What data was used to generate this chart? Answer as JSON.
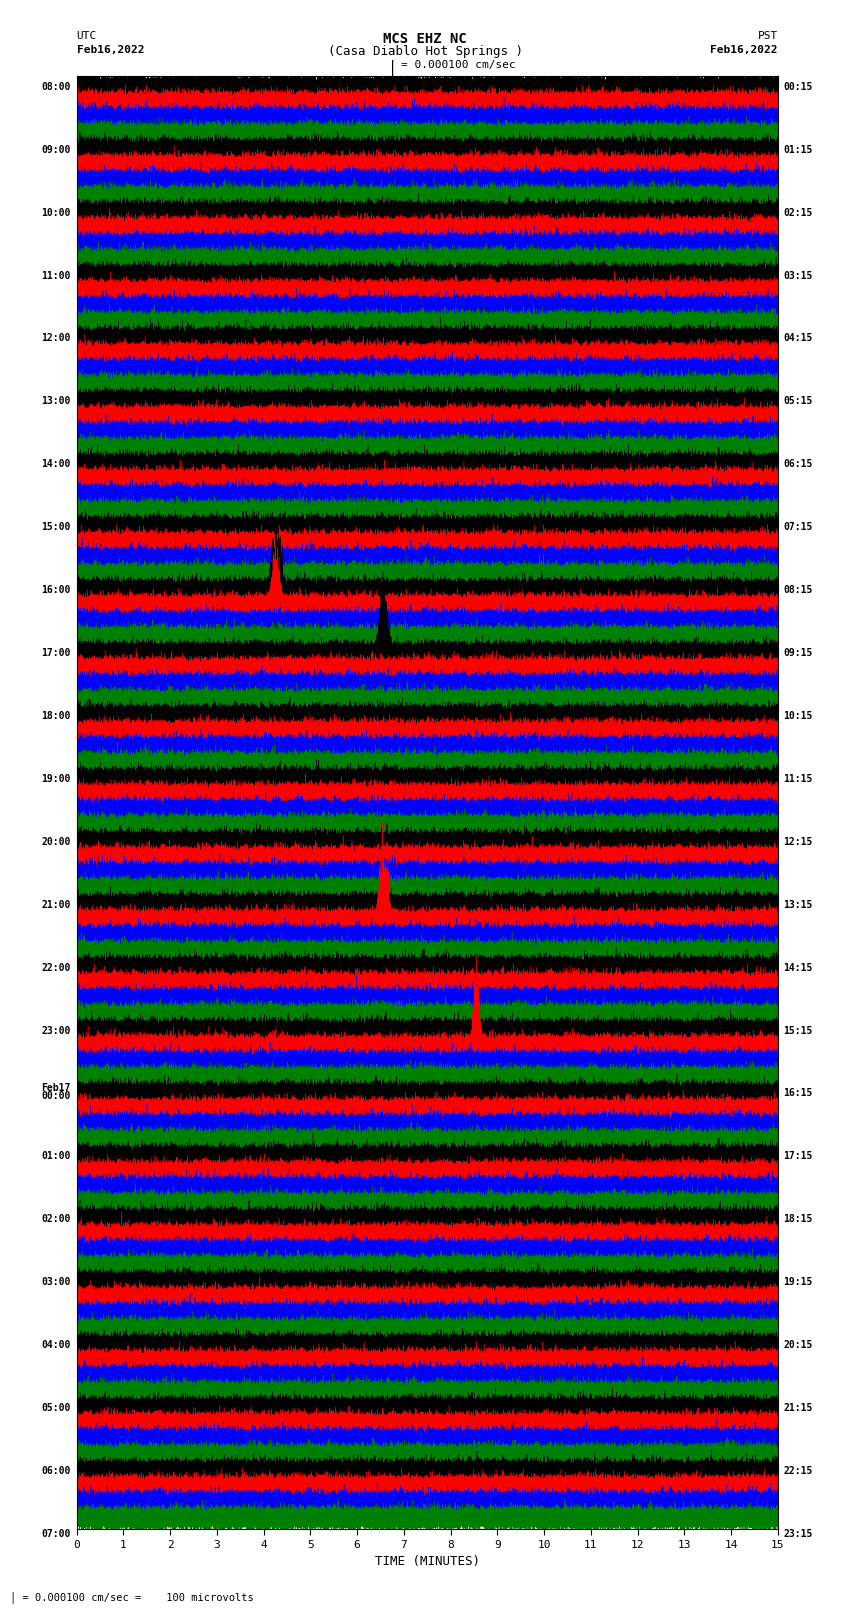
{
  "title_line1": "MCS EHZ NC",
  "title_line2": "(Casa Diablo Hot Springs )",
  "scale_label": "= 0.000100 cm/sec",
  "left_label_top": "UTC",
  "left_label_date": "Feb16,2022",
  "right_label_top": "PST",
  "right_label_date": "Feb16,2022",
  "bottom_label": "TIME (MINUTES)",
  "bottom_note": "= 0.000100 cm/sec =    100 microvolts",
  "xlabel_ticks": [
    0,
    1,
    2,
    3,
    4,
    5,
    6,
    7,
    8,
    9,
    10,
    11,
    12,
    13,
    14,
    15
  ],
  "utc_labels": [
    "08:00",
    "",
    "",
    "",
    "09:00",
    "",
    "",
    "",
    "10:00",
    "",
    "",
    "",
    "11:00",
    "",
    "",
    "",
    "12:00",
    "",
    "",
    "",
    "13:00",
    "",
    "",
    "",
    "14:00",
    "",
    "",
    "",
    "15:00",
    "",
    "",
    "",
    "16:00",
    "",
    "",
    "",
    "17:00",
    "",
    "",
    "",
    "18:00",
    "",
    "",
    "",
    "19:00",
    "",
    "",
    "",
    "20:00",
    "",
    "",
    "",
    "21:00",
    "",
    "",
    "",
    "22:00",
    "",
    "",
    "",
    "23:00",
    "",
    "",
    "",
    "Feb17\n00:00",
    "",
    "",
    "",
    "01:00",
    "",
    "",
    "",
    "02:00",
    "",
    "",
    "",
    "03:00",
    "",
    "",
    "",
    "04:00",
    "",
    "",
    "",
    "05:00",
    "",
    "",
    "",
    "06:00",
    "",
    "",
    "",
    "07:00",
    "",
    "",
    ""
  ],
  "pst_labels": [
    "00:15",
    "",
    "",
    "",
    "01:15",
    "",
    "",
    "",
    "02:15",
    "",
    "",
    "",
    "03:15",
    "",
    "",
    "",
    "04:15",
    "",
    "",
    "",
    "05:15",
    "",
    "",
    "",
    "06:15",
    "",
    "",
    "",
    "07:15",
    "",
    "",
    "",
    "08:15",
    "",
    "",
    "",
    "09:15",
    "",
    "",
    "",
    "10:15",
    "",
    "",
    "",
    "11:15",
    "",
    "",
    "",
    "12:15",
    "",
    "",
    "",
    "13:15",
    "",
    "",
    "",
    "14:15",
    "",
    "",
    "",
    "15:15",
    "",
    "",
    "",
    "16:15",
    "",
    "",
    "",
    "17:15",
    "",
    "",
    "",
    "18:15",
    "",
    "",
    "",
    "19:15",
    "",
    "",
    "",
    "20:15",
    "",
    "",
    "",
    "21:15",
    "",
    "",
    "",
    "22:15",
    "",
    "",
    "",
    "23:15",
    "",
    "",
    ""
  ],
  "n_rows": 92,
  "n_minutes": 15,
  "sample_rate": 100,
  "row_colors": [
    "black",
    "red",
    "blue",
    "green"
  ],
  "background_color": "white",
  "grid_color": "red",
  "grid_linewidth": 0.4,
  "trace_linewidth": 0.3,
  "noise_amplitude": 0.28,
  "special_events": [
    {
      "row": 16,
      "col": 1,
      "minute": 13.2,
      "duration": 0.25,
      "amplitude": 3.5
    },
    {
      "row": 19,
      "col": 1,
      "minute": 2.15,
      "duration": 0.18,
      "amplitude": 2.0
    },
    {
      "row": 27,
      "col": 1,
      "minute": 7.5,
      "duration": 0.2,
      "amplitude": 2.0
    },
    {
      "row": 32,
      "col": 0,
      "minute": 4.2,
      "duration": 0.3,
      "amplitude": 2.2
    },
    {
      "row": 33,
      "col": 1,
      "minute": 4.2,
      "duration": 0.25,
      "amplitude": 2.0
    },
    {
      "row": 34,
      "col": 0,
      "minute": 5.5,
      "duration": 0.25,
      "amplitude": 2.2
    },
    {
      "row": 35,
      "col": 0,
      "minute": 5.5,
      "duration": 0.2,
      "amplitude": 2.0
    },
    {
      "row": 36,
      "col": 0,
      "minute": 6.5,
      "duration": 0.28,
      "amplitude": 2.5
    },
    {
      "row": 37,
      "col": 3,
      "minute": 6.5,
      "duration": 0.25,
      "amplitude": 2.0
    },
    {
      "row": 38,
      "col": 0,
      "minute": 9.2,
      "duration": 0.22,
      "amplitude": 1.8
    },
    {
      "row": 39,
      "col": 0,
      "minute": 9.2,
      "duration": 0.2,
      "amplitude": 1.8
    },
    {
      "row": 42,
      "col": 0,
      "minute": 12.5,
      "duration": 0.22,
      "amplitude": 2.0
    },
    {
      "row": 47,
      "col": 0,
      "minute": 14.8,
      "duration": 0.15,
      "amplitude": 1.8
    },
    {
      "row": 51,
      "col": 0,
      "minute": 2.3,
      "duration": 0.4,
      "amplitude": 3.5
    },
    {
      "row": 51,
      "col": 1,
      "minute": 8.8,
      "duration": 0.3,
      "amplitude": 2.5
    },
    {
      "row": 51,
      "col": 1,
      "minute": 13.5,
      "duration": 0.2,
      "amplitude": 2.0
    },
    {
      "row": 51,
      "col": 2,
      "minute": 14.5,
      "duration": 0.2,
      "amplitude": 2.0
    },
    {
      "row": 53,
      "col": 1,
      "minute": 6.5,
      "duration": 0.28,
      "amplitude": 2.5
    },
    {
      "row": 55,
      "col": 0,
      "minute": 5.2,
      "duration": 0.35,
      "amplitude": 3.8
    },
    {
      "row": 59,
      "col": 0,
      "minute": 2.5,
      "duration": 0.55,
      "amplitude": 4.5
    },
    {
      "row": 59,
      "col": 0,
      "minute": 4.5,
      "duration": 0.4,
      "amplitude": 3.0
    },
    {
      "row": 60,
      "col": 1,
      "minute": 8.5,
      "duration": 0.25,
      "amplitude": 2.5
    },
    {
      "row": 61,
      "col": 1,
      "minute": 8.5,
      "duration": 0.22,
      "amplitude": 2.2
    },
    {
      "row": 63,
      "col": 1,
      "minute": 4.2,
      "duration": 0.28,
      "amplitude": 2.5
    },
    {
      "row": 64,
      "col": 2,
      "minute": 14.8,
      "duration": 0.3,
      "amplitude": 3.0
    }
  ]
}
